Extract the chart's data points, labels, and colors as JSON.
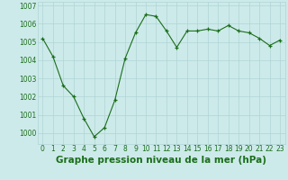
{
  "x": [
    0,
    1,
    2,
    3,
    4,
    5,
    6,
    7,
    8,
    9,
    10,
    11,
    12,
    13,
    14,
    15,
    16,
    17,
    18,
    19,
    20,
    21,
    22,
    23
  ],
  "y": [
    1005.2,
    1004.2,
    1002.6,
    1002.0,
    1000.8,
    999.8,
    1000.3,
    1001.8,
    1004.1,
    1005.5,
    1006.5,
    1006.4,
    1005.6,
    1004.7,
    1005.6,
    1005.6,
    1005.7,
    1005.6,
    1005.9,
    1005.6,
    1005.5,
    1005.2,
    1004.8,
    1005.1
  ],
  "line_color": "#1a6e1a",
  "marker": "+",
  "bg_color": "#cdeaea",
  "grid_color": "#b0d4d4",
  "xlabel": "Graphe pression niveau de la mer (hPa)",
  "xlabel_color": "#1a6e1a",
  "ylim": [
    999.4,
    1007.2
  ],
  "yticks": [
    1000,
    1001,
    1002,
    1003,
    1004,
    1005,
    1006,
    1007
  ],
  "xticks": [
    0,
    1,
    2,
    3,
    4,
    5,
    6,
    7,
    8,
    9,
    10,
    11,
    12,
    13,
    14,
    15,
    16,
    17,
    18,
    19,
    20,
    21,
    22,
    23
  ],
  "tick_label_size": 5.5,
  "xlabel_fontsize": 7.5,
  "xlabel_fontweight": "bold"
}
